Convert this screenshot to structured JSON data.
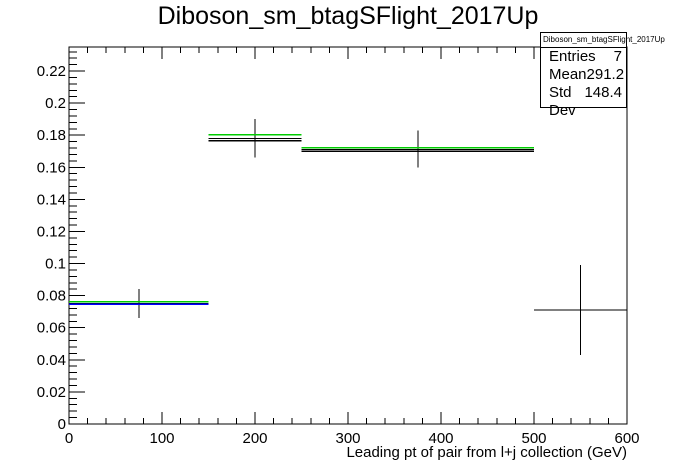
{
  "chart_data": {
    "type": "line",
    "title": "Diboson_sm_btagSFlight_2017Up",
    "xlabel": "Leading pt of pair from l+j collection (GeV)",
    "ylabel": "",
    "xlim": [
      0,
      600
    ],
    "ylim": [
      0,
      0.235
    ],
    "x_ticks": [
      0,
      100,
      200,
      300,
      400,
      500,
      600
    ],
    "y_ticks": [
      0,
      0.02,
      0.04,
      0.06,
      0.08,
      0.1,
      0.12,
      0.14,
      0.16,
      0.18,
      0.2,
      0.22
    ],
    "grid": false,
    "series": [
      {
        "color": "#000000",
        "style": "points-with-errorbars",
        "points": [
          {
            "x": 75,
            "xlow": 0,
            "xhigh": 150,
            "y": 0.075,
            "ylow": 0.066,
            "yhigh": 0.084
          },
          {
            "x": 200,
            "xlow": 150,
            "xhigh": 250,
            "y": 0.178,
            "ylow": 0.166,
            "yhigh": 0.19
          },
          {
            "x": 375,
            "xlow": 250,
            "xhigh": 500,
            "y": 0.171,
            "ylow": 0.16,
            "yhigh": 0.183
          },
          {
            "x": 550,
            "xlow": 500,
            "xhigh": 600,
            "y": 0.071,
            "ylow": 0.043,
            "yhigh": 0.099
          }
        ]
      },
      {
        "color": "#000000",
        "style": "steps",
        "bins": [
          {
            "xlow": 0,
            "xhigh": 150,
            "y": 0.0745
          },
          {
            "xlow": 150,
            "xhigh": 250,
            "y": 0.1765
          },
          {
            "xlow": 250,
            "xhigh": 500,
            "y": 0.17
          }
        ]
      },
      {
        "color": "#0000ff",
        "style": "steps",
        "bins": [
          {
            "xlow": 0,
            "xhigh": 150,
            "y": 0.0748
          }
        ]
      },
      {
        "color": "#00cc00",
        "style": "steps",
        "bins": [
          {
            "xlow": 0,
            "xhigh": 150,
            "y": 0.0762
          },
          {
            "xlow": 150,
            "xhigh": 250,
            "y": 0.1802
          },
          {
            "xlow": 250,
            "xhigh": 500,
            "y": 0.1722
          }
        ]
      }
    ]
  },
  "stats_box": {
    "title": "Diboson_sm_btagSFlight_2017Up",
    "entries_label": "Entries",
    "entries_value": "7",
    "mean_label": "Mean",
    "mean_value": "291.2",
    "stddev_label": "Std Dev",
    "stddev_value": "148.4"
  }
}
